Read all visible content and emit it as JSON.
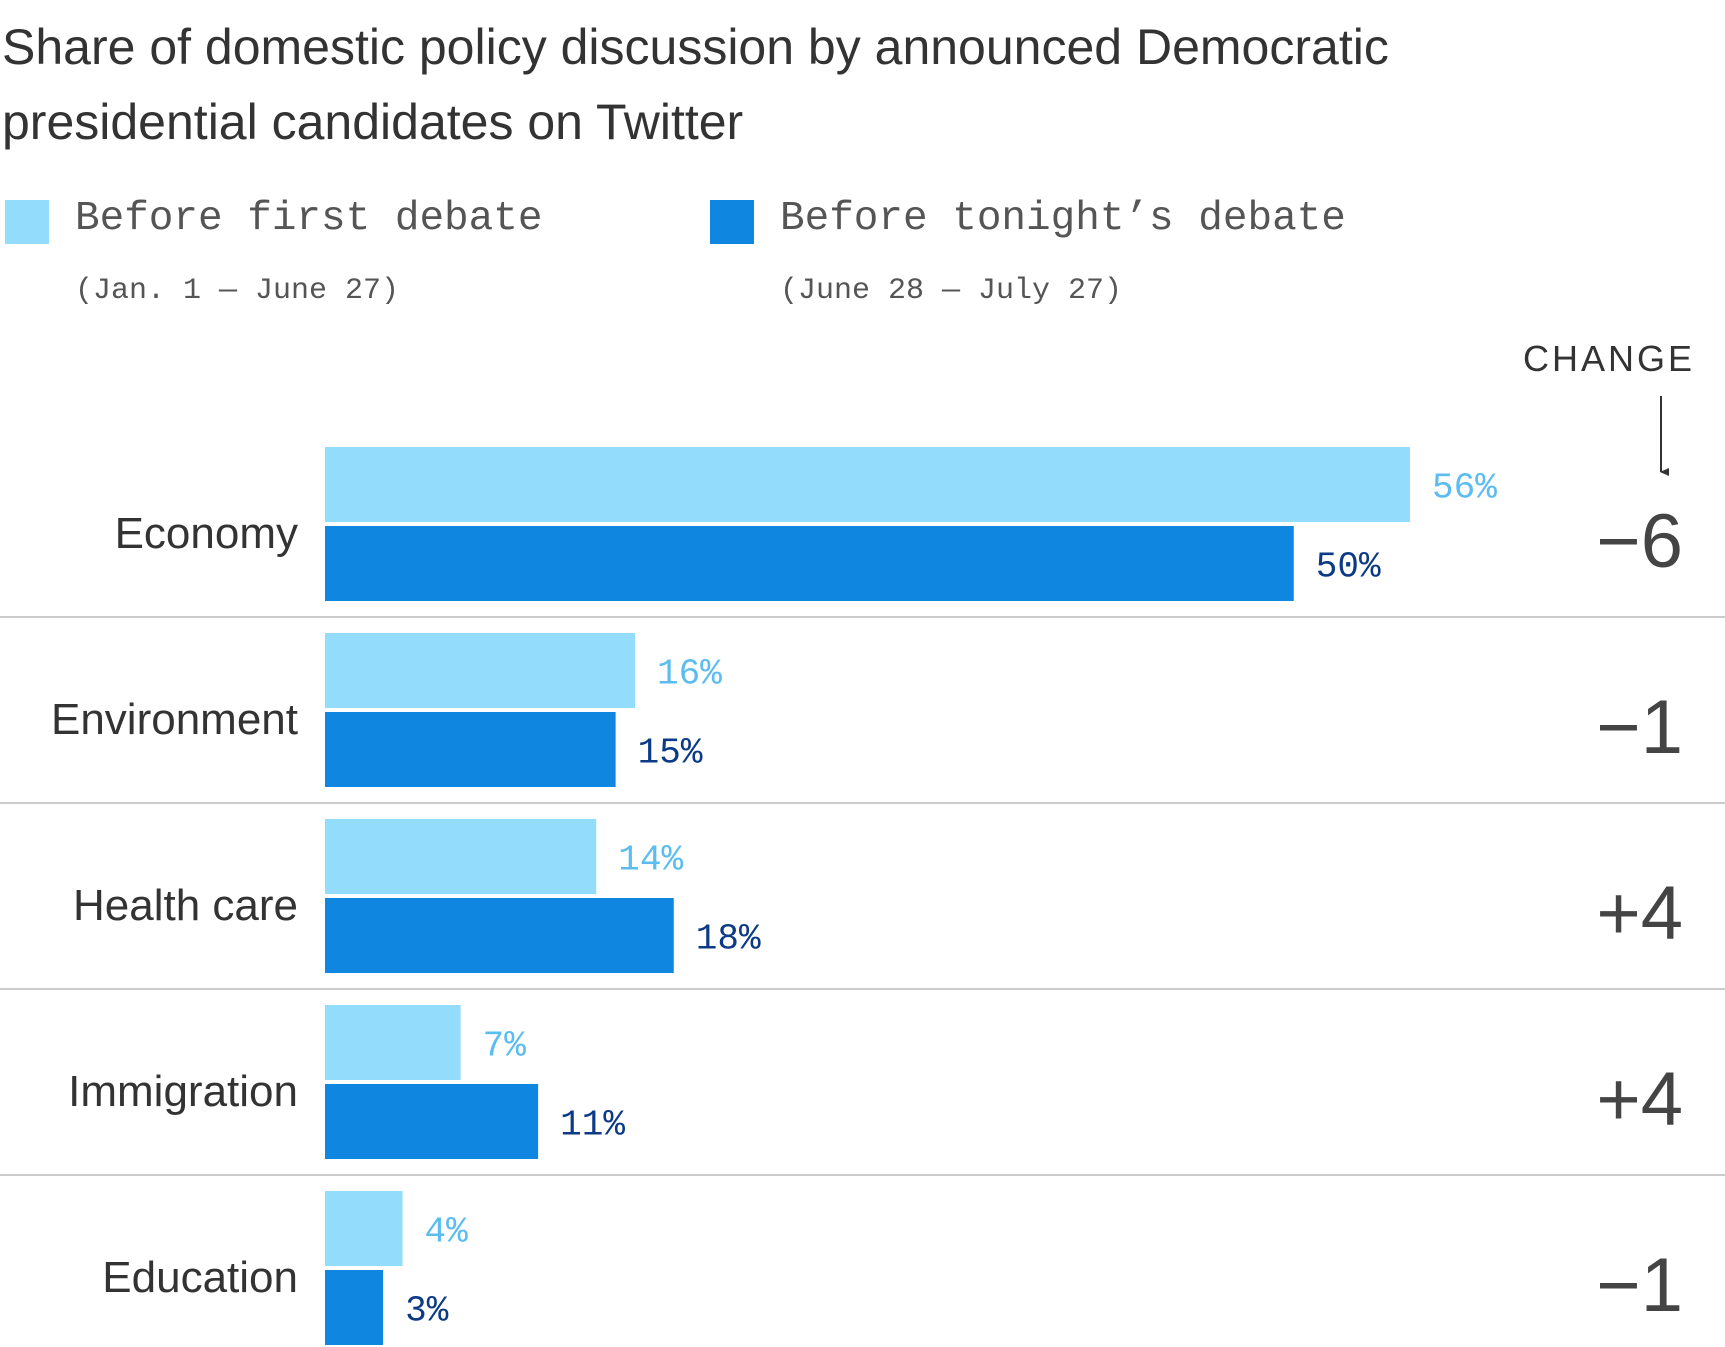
{
  "chart_data": {
    "type": "bar",
    "orientation": "horizontal",
    "title": "Share of domestic policy discussion by announced Democratic presidential candidates on Twitter",
    "categories": [
      "Economy",
      "Environment",
      "Health care",
      "Immigration",
      "Education"
    ],
    "series": [
      {
        "name": "Before first debate",
        "subtitle": "(Jan. 1 — June 27)",
        "color": "#94dcfc",
        "label_color": "#5bbcf2",
        "values": [
          56,
          16,
          14,
          7,
          4
        ],
        "labels": [
          "56%",
          "16%",
          "14%",
          "7%",
          "4%"
        ]
      },
      {
        "name": "Before tonight’s debate",
        "subtitle": "(June 28 — July 27)",
        "color": "#0f86e0",
        "label_color": "#0c3a86",
        "values": [
          50,
          15,
          18,
          11,
          3
        ],
        "labels": [
          "50%",
          "15%",
          "18%",
          "11%",
          "3%"
        ]
      }
    ],
    "change": {
      "header": "CHANGE",
      "values": [
        "−6",
        "−1",
        "+4",
        "+4",
        "−1"
      ]
    },
    "xlim": [
      0,
      56
    ],
    "grid": false,
    "legend_position": "top-left"
  }
}
